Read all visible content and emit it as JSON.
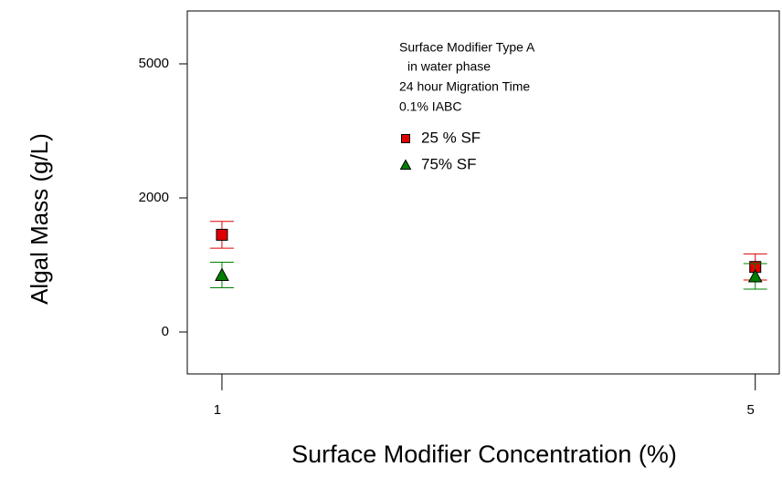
{
  "chart_data": {
    "type": "scatter",
    "xlabel": "Surface Modifier Concentration (%)",
    "ylabel": "Algal Mass (g/L)",
    "annotations": [
      "Surface Modifier Type A",
      "in water phase",
      "24 hour Migration Time",
      "0.1% IABC"
    ],
    "x": [
      1,
      5
    ],
    "series": [
      {
        "name": "25 % SF",
        "color": "#e00000",
        "marker": "square",
        "values": [
          1450,
          970
        ],
        "errors": [
          200,
          195
        ]
      },
      {
        "name": "75% SF",
        "color": "#008000",
        "marker": "triangle",
        "values": [
          850,
          830
        ],
        "errors": [
          190,
          190
        ]
      }
    ],
    "xlim": [
      0.74,
      5.18
    ],
    "xticks": [
      1,
      5
    ],
    "ylim": [
      -630,
      6200
    ],
    "yticks": [
      0,
      2000,
      5000
    ]
  }
}
